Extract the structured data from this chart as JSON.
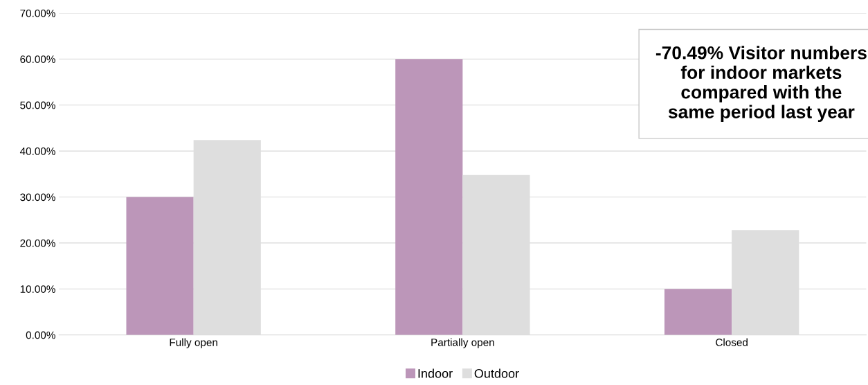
{
  "chart_data": {
    "type": "bar",
    "categories": [
      "Fully open",
      "Partially open",
      "Closed"
    ],
    "series": [
      {
        "name": "Indoor",
        "color": "#bc96b9",
        "values": [
          30.0,
          60.0,
          10.0
        ]
      },
      {
        "name": "Outdoor",
        "color": "#dedede",
        "values": [
          42.4,
          34.8,
          22.8
        ]
      }
    ],
    "ylim": [
      0,
      70
    ],
    "yticks": [
      {
        "value": 0,
        "label": "0.00%"
      },
      {
        "value": 10,
        "label": "10.00%"
      },
      {
        "value": 20,
        "label": "20.00%"
      },
      {
        "value": 30,
        "label": "30.00%"
      },
      {
        "value": 40,
        "label": "40.00%"
      },
      {
        "value": 50,
        "label": "50.00%"
      },
      {
        "value": 60,
        "label": "60.00%"
      },
      {
        "value": 70,
        "label": "70.00%"
      }
    ],
    "grid": "y",
    "legend": "bottom",
    "annotations": [
      "-70.49% Visitor numbers for indoor markets compared with the same period last year"
    ]
  }
}
